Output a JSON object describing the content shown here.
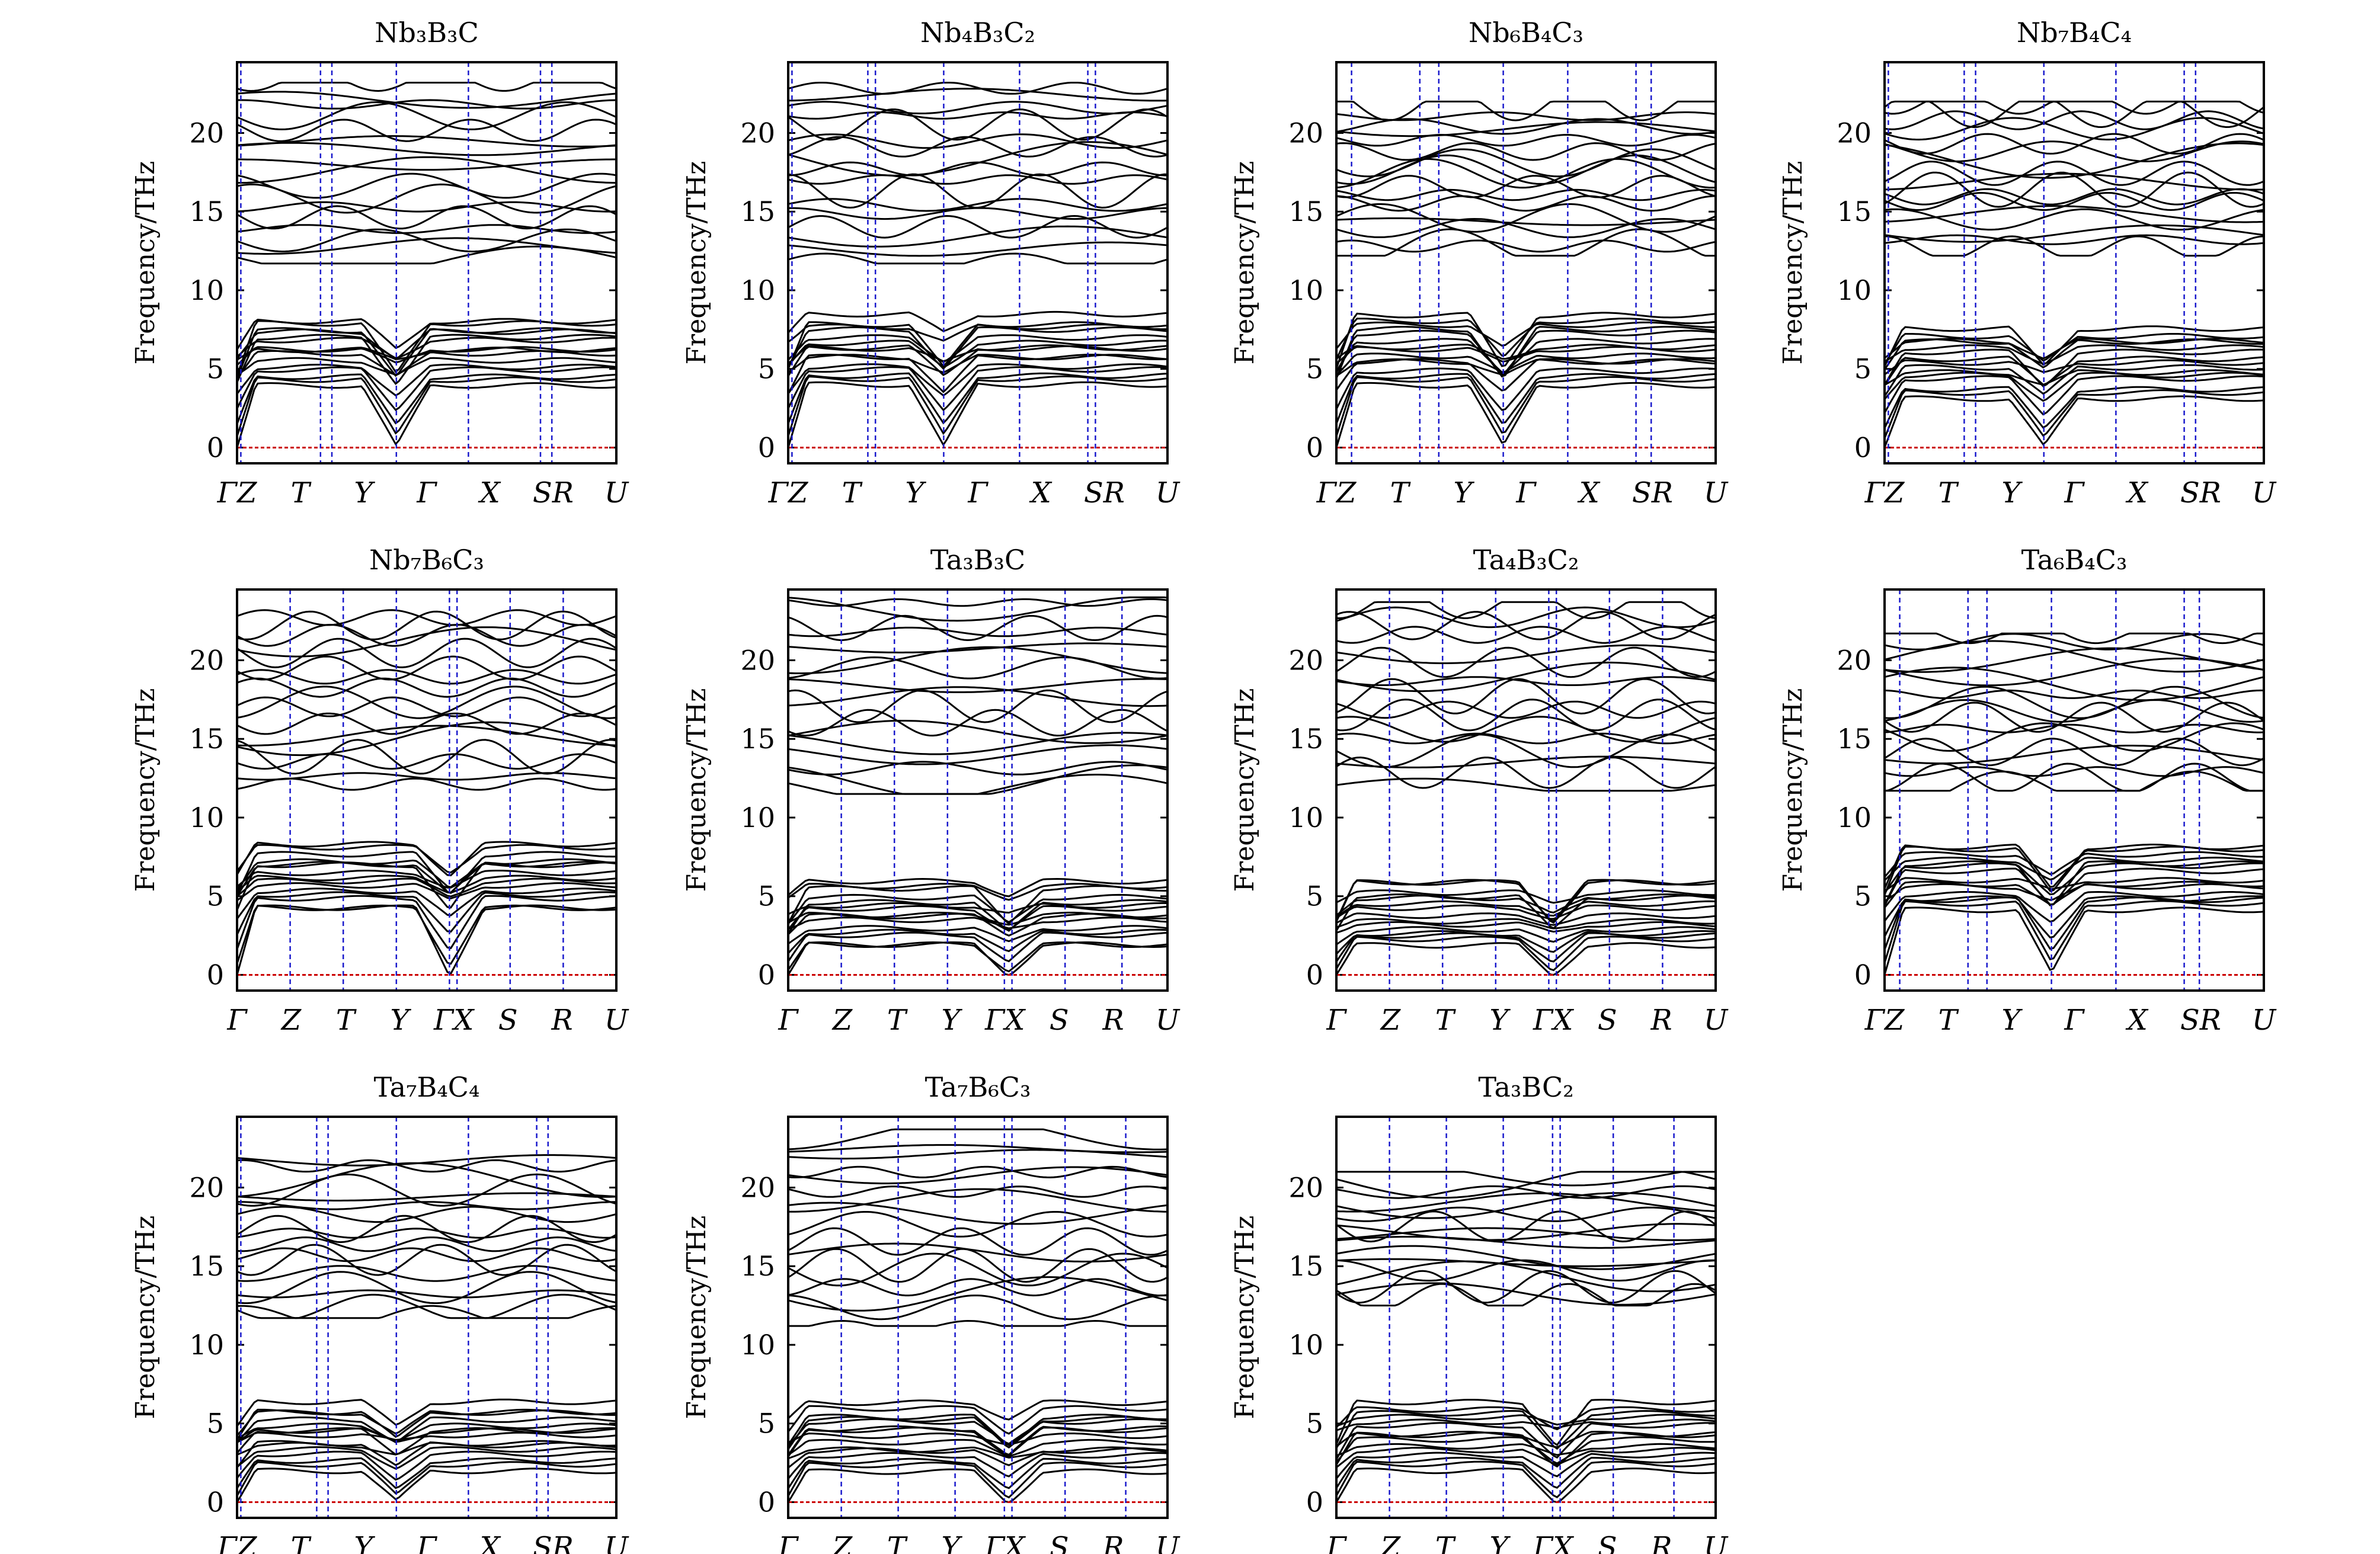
{
  "figure": {
    "ylabel": "Frequency/THz",
    "colors": {
      "band": "#000000",
      "hs_line": "#1a1acc",
      "zero_line": "#cc0000",
      "frame": "#000000"
    }
  },
  "chart_data": [
    {
      "type": "line",
      "title": "Nb₃B₃C",
      "ylim": [
        -1,
        24.5
      ],
      "yticks": [
        0,
        5,
        10,
        15,
        20
      ],
      "x_labels": [
        "ΓZ",
        "T",
        "Y",
        "Γ",
        "X",
        "SR",
        "U"
      ],
      "hs_points": [
        0.01,
        0.22,
        0.25,
        0.42,
        0.61,
        0.8,
        0.83
      ],
      "upper_band": [
        12.0,
        23.0
      ],
      "lower_band": [
        0,
        8.2
      ],
      "acoustic_dips": [
        0.42
      ]
    },
    {
      "type": "line",
      "title": "Nb₄B₃C₂",
      "ylim": [
        -1,
        24.5
      ],
      "yticks": [
        0,
        5,
        10,
        15,
        20
      ],
      "x_labels": [
        "ΓZ",
        "T",
        "Y",
        "Γ",
        "X",
        "SR",
        "U"
      ],
      "hs_points": [
        0.01,
        0.21,
        0.23,
        0.41,
        0.61,
        0.79,
        0.81
      ],
      "upper_band": [
        12.0,
        23.0
      ],
      "lower_band": [
        0,
        8.3
      ],
      "acoustic_dips": [
        0.41
      ]
    },
    {
      "type": "line",
      "title": "Nb₆B₄C₃",
      "ylim": [
        -1,
        24.5
      ],
      "yticks": [
        0,
        5,
        10,
        15,
        20
      ],
      "x_labels": [
        "ΓZ",
        "T",
        "Y",
        "Γ",
        "X",
        "SR",
        "U"
      ],
      "hs_points": [
        0.04,
        0.22,
        0.27,
        0.44,
        0.61,
        0.79,
        0.83
      ],
      "upper_band": [
        12.5,
        21.8
      ],
      "lower_band": [
        0,
        8.3
      ],
      "acoustic_dips": [
        0.44
      ]
    },
    {
      "type": "line",
      "title": "Nb₇B₄C₄",
      "ylim": [
        -1,
        24.5
      ],
      "yticks": [
        0,
        5,
        10,
        15,
        20
      ],
      "x_labels": [
        "ΓZ",
        "T",
        "Y",
        "Γ",
        "X",
        "SR",
        "U"
      ],
      "hs_points": [
        0.01,
        0.21,
        0.24,
        0.42,
        0.61,
        0.79,
        0.82
      ],
      "upper_band": [
        12.5,
        21.8
      ],
      "lower_band": [
        0,
        7.5
      ],
      "acoustic_dips": [
        0.42
      ]
    },
    {
      "type": "line",
      "title": "Nb₇B₆C₃",
      "ylim": [
        -1,
        24.5
      ],
      "yticks": [
        0,
        5,
        10,
        15,
        20
      ],
      "x_labels": [
        "Γ",
        "Z",
        "T",
        "Y",
        "ΓX",
        "S",
        "R",
        "U"
      ],
      "hs_points": [
        0.14,
        0.28,
        0.42,
        0.56,
        0.58,
        0.72,
        0.86
      ],
      "upper_band": [
        12.0,
        23.0
      ],
      "lower_band": [
        0,
        8.3
      ],
      "acoustic_dips": [
        0.56
      ]
    },
    {
      "type": "line",
      "title": "Ta₃B₃C",
      "ylim": [
        -1,
        24.5
      ],
      "yticks": [
        0,
        5,
        10,
        15,
        20
      ],
      "x_labels": [
        "Γ",
        "Z",
        "T",
        "Y",
        "ΓX",
        "S",
        "R",
        "U"
      ],
      "hs_points": [
        0.14,
        0.28,
        0.42,
        0.57,
        0.59,
        0.73,
        0.88
      ],
      "upper_band": [
        11.8,
        23.8
      ],
      "lower_band": [
        0,
        6.0
      ],
      "acoustic_dips": [
        0.58
      ]
    },
    {
      "type": "line",
      "title": "Ta₄B₃C₂",
      "ylim": [
        -1,
        24.5
      ],
      "yticks": [
        0,
        5,
        10,
        15,
        20
      ],
      "x_labels": [
        "Γ",
        "Z",
        "T",
        "Y",
        "ΓX",
        "S",
        "R",
        "U"
      ],
      "hs_points": [
        0.14,
        0.28,
        0.42,
        0.56,
        0.58,
        0.72,
        0.86
      ],
      "upper_band": [
        12.0,
        23.5
      ],
      "lower_band": [
        0,
        6.0
      ],
      "acoustic_dips": [
        0.57
      ]
    },
    {
      "type": "line",
      "title": "Ta₆B₄C₃",
      "ylim": [
        -1,
        24.5
      ],
      "yticks": [
        0,
        5,
        10,
        15,
        20
      ],
      "x_labels": [
        "ΓZ",
        "T",
        "Y",
        "Γ",
        "X",
        "SR",
        "U"
      ],
      "hs_points": [
        0.04,
        0.22,
        0.27,
        0.44,
        0.61,
        0.79,
        0.83
      ],
      "upper_band": [
        12.0,
        21.5
      ],
      "lower_band": [
        0,
        8.3
      ],
      "acoustic_dips": [
        0.44
      ]
    },
    {
      "type": "line",
      "title": "Ta₇B₄C₄",
      "ylim": [
        -1,
        24.5
      ],
      "yticks": [
        0,
        5,
        10,
        15,
        20
      ],
      "x_labels": [
        "ΓZ",
        "T",
        "Y",
        "Γ",
        "X",
        "SR",
        "U"
      ],
      "hs_points": [
        0.01,
        0.21,
        0.24,
        0.42,
        0.61,
        0.79,
        0.82
      ],
      "upper_band": [
        12.0,
        22.0
      ],
      "lower_band": [
        0,
        6.2
      ],
      "acoustic_dips": [
        0.42
      ]
    },
    {
      "type": "line",
      "title": "Ta₇B₆C₃",
      "ylim": [
        -1,
        24.5
      ],
      "yticks": [
        0,
        5,
        10,
        15,
        20
      ],
      "x_labels": [
        "Γ",
        "Z",
        "T",
        "Y",
        "ΓX",
        "S",
        "R",
        "U"
      ],
      "hs_points": [
        0.14,
        0.29,
        0.44,
        0.57,
        0.59,
        0.73,
        0.89
      ],
      "upper_band": [
        11.5,
        23.5
      ],
      "lower_band": [
        0,
        6.2
      ],
      "acoustic_dips": [
        0.58
      ]
    },
    {
      "type": "line",
      "title": "Ta₃BC₂",
      "ylim": [
        -1,
        24.5
      ],
      "yticks": [
        0,
        5,
        10,
        15,
        20
      ],
      "x_labels": [
        "Γ",
        "Z",
        "T",
        "Y",
        "ΓX",
        "S",
        "R",
        "U"
      ],
      "hs_points": [
        0.14,
        0.29,
        0.44,
        0.57,
        0.59,
        0.73,
        0.89
      ],
      "upper_band": [
        12.8,
        20.8
      ],
      "lower_band": [
        0,
        6.3
      ],
      "acoustic_dips": [
        0.58
      ]
    }
  ]
}
